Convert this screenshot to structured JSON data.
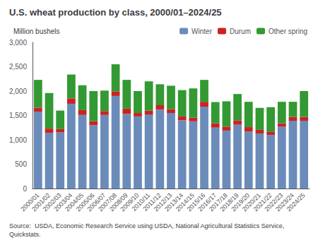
{
  "chart_data": {
    "type": "bar",
    "stacked": true,
    "title": "U.S. wheat production by class, 2000/01–2024/25",
    "ylabel": "Million bushels",
    "annotations": [
      "Source:  USDA, Economic Research Service using USDA, National Agricultural Statistics Service, Quickstats."
    ],
    "categories": [
      "2000/01",
      "2001/02",
      "2002/03",
      "2003/04",
      "2004/05",
      "2005/06",
      "2006/07",
      "2007/08",
      "2008/09",
      "2009/10",
      "2010/11",
      "2011/12",
      "2012/13",
      "2013/14",
      "2014/15",
      "2015/16",
      "2016/17",
      "2017/18",
      "2018/19",
      "2019/20",
      "2020/21",
      "2021/22",
      "2022/23",
      "2023/24",
      "2024/25"
    ],
    "series": [
      {
        "name": "Winter",
        "color": "#6b8cba",
        "values": [
          1580,
          1140,
          1150,
          1740,
          1510,
          1300,
          1510,
          1900,
          1530,
          1480,
          1520,
          1620,
          1550,
          1400,
          1380,
          1680,
          1250,
          1190,
          1310,
          1170,
          1130,
          1100,
          1270,
          1390,
          1390
        ]
      },
      {
        "name": "Durum",
        "color": "#cc2222",
        "values": [
          80,
          90,
          70,
          110,
          100,
          80,
          80,
          95,
          110,
          70,
          80,
          90,
          80,
          80,
          75,
          100,
          90,
          80,
          90,
          90,
          75,
          70,
          70,
          80,
          80
        ]
      },
      {
        "name": "Other spring",
        "color": "#339933",
        "values": [
          570,
          730,
          380,
          490,
          510,
          620,
          420,
          555,
          590,
          450,
          600,
          430,
          480,
          540,
          600,
          450,
          435,
          520,
          540,
          520,
          450,
          500,
          440,
          310,
          530
        ]
      }
    ],
    "ylim": [
      0,
      3000
    ],
    "yticks": [
      0,
      500,
      {
        "value": 1000,
        "label": "1,000"
      },
      {
        "value": 1500,
        "label": "1,500"
      },
      {
        "value": 2000,
        "label": "2,000"
      },
      {
        "value": 2500,
        "label": "2,500"
      },
      {
        "value": 3000,
        "label": "3,000"
      }
    ],
    "grid": false,
    "legend": "top"
  }
}
